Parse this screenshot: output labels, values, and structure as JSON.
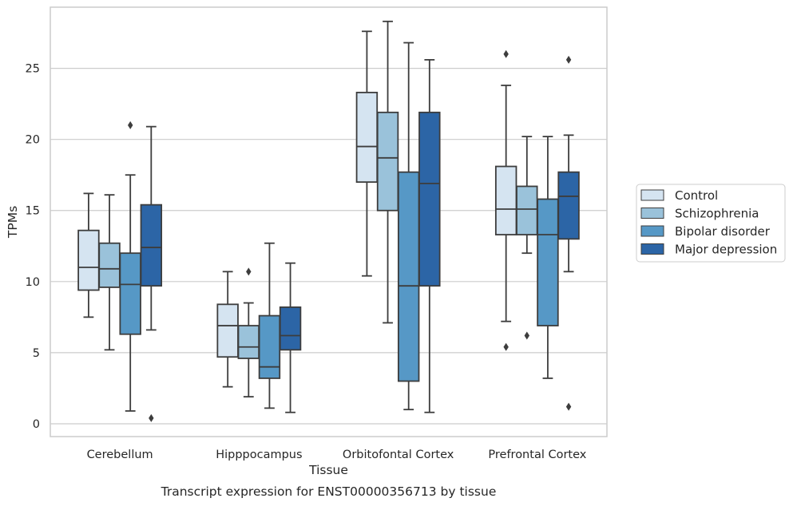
{
  "chart_data": {
    "type": "boxplot",
    "title": "",
    "caption": "Transcript expression for ENST00000356713 by tissue",
    "xlabel": "Tissue",
    "ylabel": "TPMs",
    "ylim": [
      -0.9,
      29.3
    ],
    "yticks": [
      0,
      5,
      10,
      15,
      20,
      25
    ],
    "grid": "horizontal",
    "legend_position": "right",
    "categories": [
      "Cerebellum",
      "Hipppocampus",
      "Orbitofontal Cortex",
      "Prefrontal Cortex"
    ],
    "series": [
      {
        "name": "Control",
        "color": "#d5e4f1",
        "boxes": [
          {
            "whislo": 7.5,
            "q1": 9.4,
            "med": 11.0,
            "q3": 13.6,
            "whishi": 16.2,
            "fliers": []
          },
          {
            "whislo": 2.6,
            "q1": 4.7,
            "med": 6.9,
            "q3": 8.4,
            "whishi": 10.7,
            "fliers": []
          },
          {
            "whislo": 10.4,
            "q1": 17.0,
            "med": 19.5,
            "q3": 23.3,
            "whishi": 27.6,
            "fliers": []
          },
          {
            "whislo": 7.2,
            "q1": 13.3,
            "med": 15.1,
            "q3": 18.1,
            "whishi": 23.8,
            "fliers": [
              26.0,
              5.4
            ]
          }
        ]
      },
      {
        "name": "Schizophrenia",
        "color": "#9ac2da",
        "boxes": [
          {
            "whislo": 5.2,
            "q1": 9.6,
            "med": 10.9,
            "q3": 12.7,
            "whishi": 16.1,
            "fliers": []
          },
          {
            "whislo": 1.9,
            "q1": 4.6,
            "med": 5.4,
            "q3": 6.9,
            "whishi": 8.5,
            "fliers": [
              10.7
            ]
          },
          {
            "whislo": 7.1,
            "q1": 15.0,
            "med": 18.7,
            "q3": 21.9,
            "whishi": 28.3,
            "fliers": []
          },
          {
            "whislo": 12.0,
            "q1": 13.3,
            "med": 15.1,
            "q3": 16.7,
            "whishi": 20.2,
            "fliers": [
              6.2
            ]
          }
        ]
      },
      {
        "name": "Bipolar disorder",
        "color": "#5698c6",
        "boxes": [
          {
            "whislo": 0.9,
            "q1": 6.3,
            "med": 9.8,
            "q3": 12.0,
            "whishi": 17.5,
            "fliers": [
              21.0
            ]
          },
          {
            "whislo": 1.1,
            "q1": 3.2,
            "med": 4.0,
            "q3": 7.6,
            "whishi": 12.7,
            "fliers": []
          },
          {
            "whislo": 1.0,
            "q1": 3.0,
            "med": 9.7,
            "q3": 17.7,
            "whishi": 26.8,
            "fliers": []
          },
          {
            "whislo": 3.2,
            "q1": 6.9,
            "med": 13.3,
            "q3": 15.8,
            "whishi": 20.2,
            "fliers": []
          }
        ]
      },
      {
        "name": "Major depression",
        "color": "#2c65a6",
        "boxes": [
          {
            "whislo": 6.6,
            "q1": 9.7,
            "med": 12.4,
            "q3": 15.4,
            "whishi": 20.9,
            "fliers": [
              0.4
            ]
          },
          {
            "whislo": 0.8,
            "q1": 5.2,
            "med": 6.2,
            "q3": 8.2,
            "whishi": 11.3,
            "fliers": []
          },
          {
            "whislo": 0.8,
            "q1": 9.7,
            "med": 16.9,
            "q3": 21.9,
            "whishi": 25.6,
            "fliers": []
          },
          {
            "whislo": 10.7,
            "q1": 13.0,
            "med": 16.0,
            "q3": 17.7,
            "whishi": 20.3,
            "fliers": [
              25.6,
              1.2
            ]
          }
        ]
      }
    ]
  }
}
